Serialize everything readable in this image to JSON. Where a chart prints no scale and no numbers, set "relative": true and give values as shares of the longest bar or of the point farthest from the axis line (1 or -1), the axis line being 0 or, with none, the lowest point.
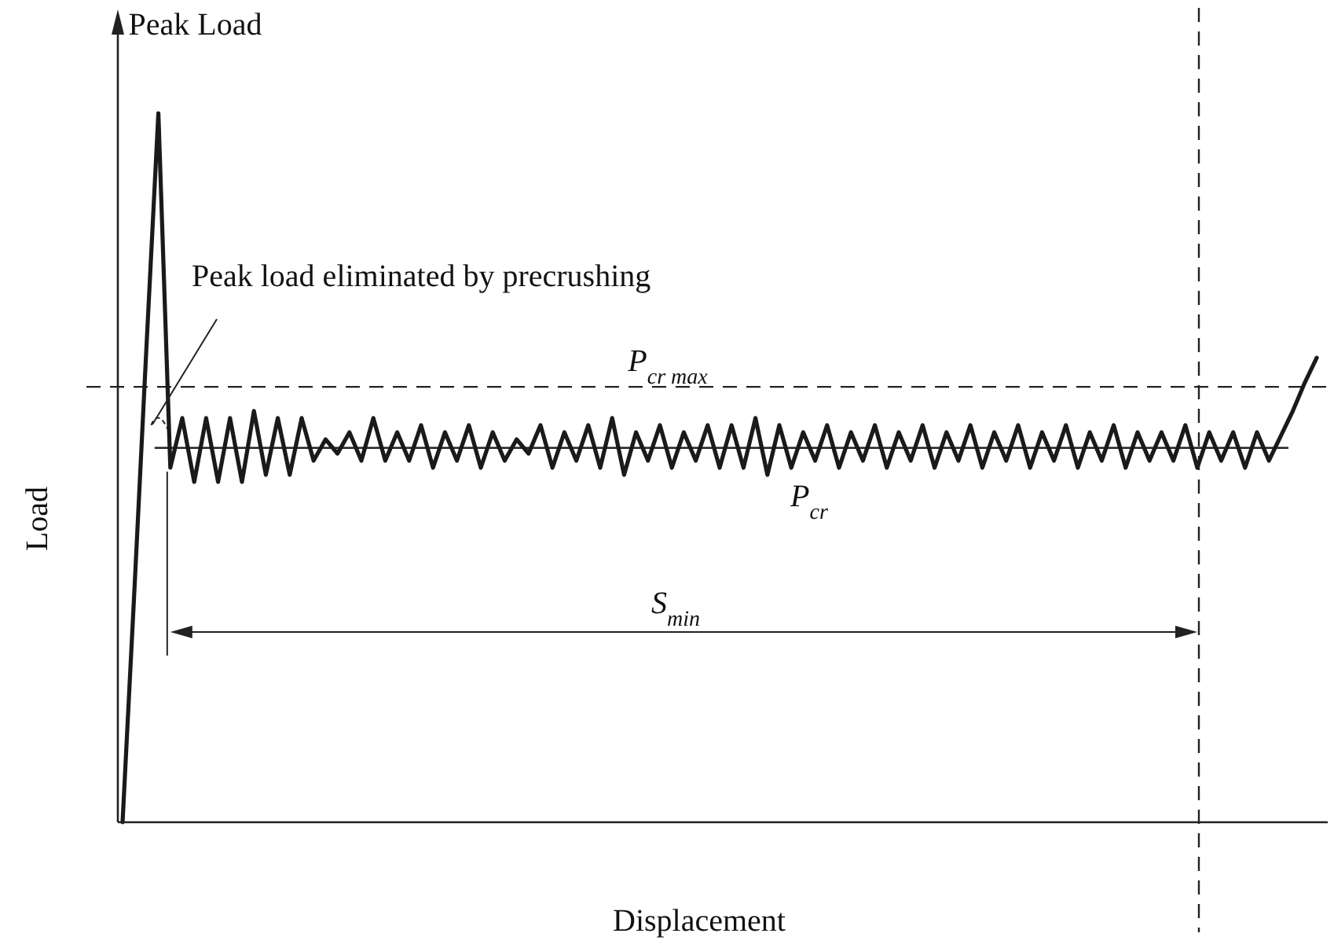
{
  "chart_data": {
    "type": "line",
    "relative": true,
    "xlabel": "Displacement",
    "ylabel": "Load",
    "marker": "none",
    "line_style": "solid",
    "categories": [
      null,
      null,
      null,
      null,
      null,
      null,
      null,
      null,
      null,
      null,
      null,
      null,
      null,
      null,
      null,
      null,
      null,
      null,
      null,
      null,
      null,
      null,
      null,
      null,
      null,
      null,
      null,
      null,
      null,
      null,
      null,
      null,
      null,
      null,
      null,
      null,
      null,
      null,
      null,
      null,
      null,
      null,
      null,
      null,
      null,
      null,
      null,
      null,
      null,
      null,
      null,
      null,
      null,
      null,
      null,
      null,
      null,
      null,
      null,
      null,
      null,
      null,
      null,
      null,
      null,
      null,
      null,
      null,
      null,
      null,
      null,
      null,
      null,
      null,
      null,
      null,
      null,
      null,
      null,
      null,
      null,
      null,
      null,
      null,
      null,
      null,
      null,
      null,
      null,
      null,
      null,
      null,
      null,
      null,
      null,
      null,
      null,
      null,
      null,
      null,
      null
    ],
    "series": [
      {
        "color": "#1a1a1a",
        "values": [
          0,
          0.33,
          0.67,
          1,
          0.5,
          0.57,
          0.48,
          0.57,
          0.48,
          0.57,
          0.48,
          0.58,
          0.49,
          0.57,
          0.49,
          0.57,
          0.51,
          0.54,
          0.52,
          0.55,
          0.51,
          0.57,
          0.51,
          0.55,
          0.51,
          0.56,
          0.5,
          0.55,
          0.51,
          0.56,
          0.5,
          0.55,
          0.51,
          0.54,
          0.52,
          0.56,
          0.5,
          0.55,
          0.51,
          0.56,
          0.5,
          0.57,
          0.49,
          0.55,
          0.51,
          0.56,
          0.5,
          0.55,
          0.51,
          0.56,
          0.5,
          0.56,
          0.5,
          0.57,
          0.49,
          0.56,
          0.5,
          0.55,
          0.51,
          0.56,
          0.5,
          0.55,
          0.51,
          0.56,
          0.5,
          0.55,
          0.51,
          0.56,
          0.5,
          0.55,
          0.51,
          0.56,
          0.5,
          0.55,
          0.51,
          0.56,
          0.5,
          0.55,
          0.51,
          0.56,
          0.5,
          0.55,
          0.51,
          0.56,
          0.5,
          0.55,
          0.51,
          0.55,
          0.51,
          0.56,
          0.5,
          0.55,
          0.51,
          0.55,
          0.5,
          0.55,
          0.51,
          0.545,
          0.58,
          0.62,
          0.655
        ]
      }
    ],
    "ref_lines": [
      {
        "axis": "y",
        "value": 0.614,
        "label": "P$_{cr max}$",
        "line_style": "dashed"
      },
      {
        "axis": "y",
        "value": 0.528,
        "label": "P$_{cr}$",
        "line_style": "solid"
      }
    ],
    "annotations": [
      "Peak Load",
      "Peak load eliminated by precrushing",
      "S$_{min}$"
    ]
  }
}
